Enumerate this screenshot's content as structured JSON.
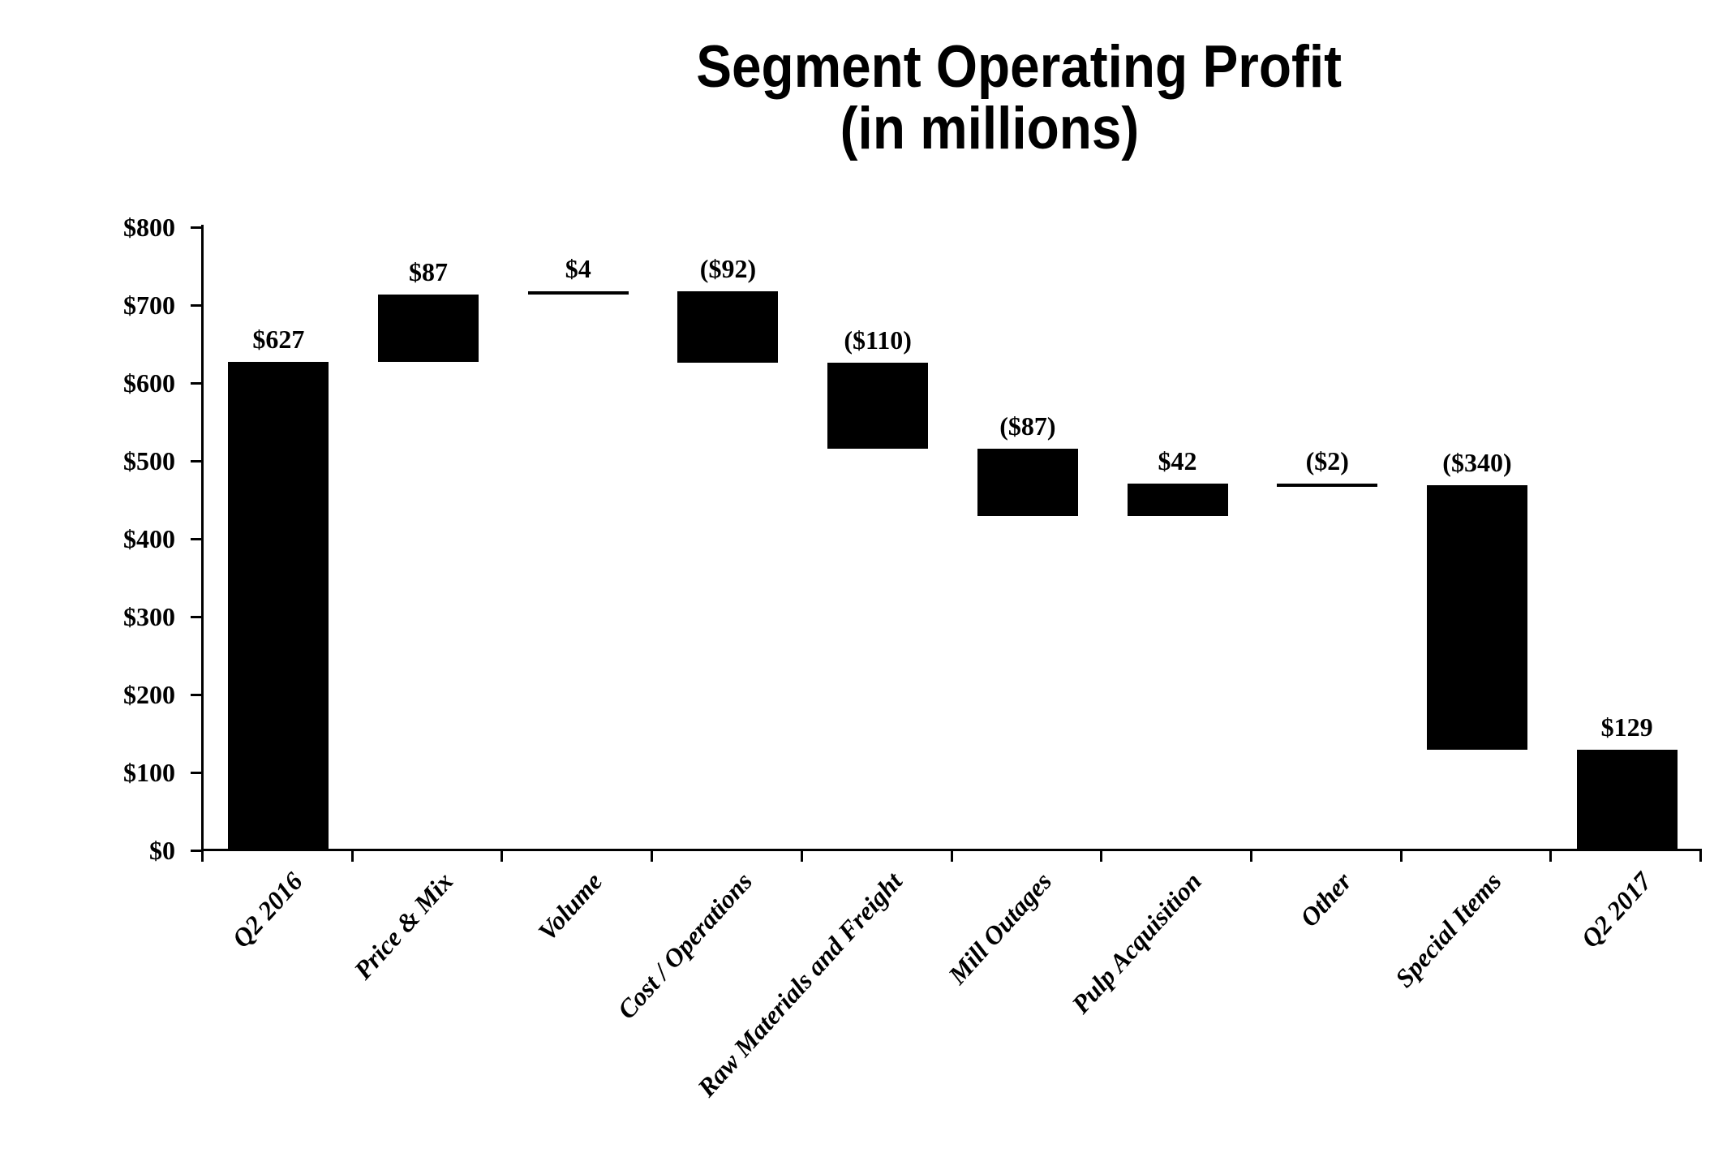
{
  "page": {
    "background": "#ffffff"
  },
  "chart_data": {
    "type": "bar",
    "subtype": "waterfall",
    "title": "Segment Operating Profit",
    "subtitle": "(in millions)",
    "categories": [
      "Q2 2016",
      "Price & Mix",
      "Volume",
      "Cost / Operations",
      "Raw Materials and Freight",
      "Mill Outages",
      "Pulp Acquisition",
      "Other",
      "Special Items",
      "Q2 2017"
    ],
    "values": [
      627,
      87,
      4,
      -92,
      -110,
      -87,
      42,
      -2,
      -340,
      129
    ],
    "data_labels": [
      "$627",
      "$87",
      "$4",
      "($92)",
      "($110)",
      "($87)",
      "$42",
      "($2)",
      "($340)",
      "$129"
    ],
    "bar_spans": [
      [
        0,
        627
      ],
      [
        627,
        714
      ],
      [
        714,
        718
      ],
      [
        626,
        718
      ],
      [
        516,
        626
      ],
      [
        429,
        516
      ],
      [
        429,
        471
      ],
      [
        469,
        471
      ],
      [
        129,
        469
      ],
      [
        0,
        129
      ]
    ],
    "running_totals": [
      627,
      714,
      718,
      626,
      516,
      429,
      471,
      469,
      129,
      129
    ],
    "y_axis": {
      "min": 0,
      "max": 800,
      "step": 100,
      "tick_labels": [
        "$0",
        "$100",
        "$200",
        "$300",
        "$400",
        "$500",
        "$600",
        "$700",
        "$800"
      ]
    },
    "bar_color": "#000000",
    "grid": false,
    "legend": false
  }
}
